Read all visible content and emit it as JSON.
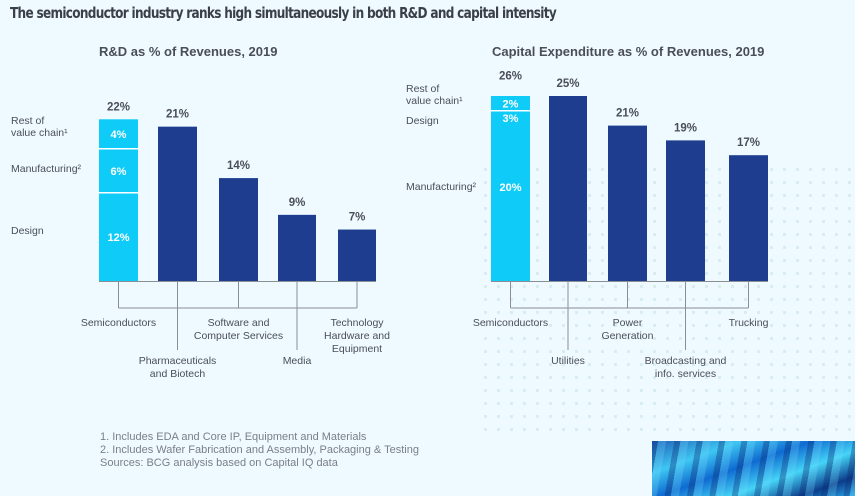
{
  "title": "The semiconductor industry ranks high simultaneously in both R&D and capital intensity",
  "colors": {
    "semiconductor": "#0fcbf8",
    "other": "#1f3d8f",
    "axis": "#8a8f96",
    "value_text": "#4a4f55",
    "segment_text": "#ffffff"
  },
  "footnotes": [
    "1. Includes EDA and Core IP, Equipment and Materials",
    "2. Includes Wafer Fabrication and Assembly, Packaging & Testing",
    "Sources: BCG analysis based on Capital IQ data"
  ],
  "chart_data": [
    {
      "type": "bar",
      "title": "R&D as % of Revenues, 2019",
      "xlabel": "",
      "ylabel": "",
      "ylim": [
        0,
        22
      ],
      "grid": false,
      "categories": [
        "Semiconductors",
        "Pharmaceuticals and Biotech",
        "Software and Computer Services",
        "Media",
        "Technology Hardware and Equipment"
      ],
      "category_lines": [
        [
          "Semiconductors"
        ],
        [
          "Pharmaceuticals",
          "and Biotech"
        ],
        [
          "Software and",
          "Computer Services"
        ],
        [
          "Media"
        ],
        [
          "Technology",
          "Hardware and",
          "Equipment"
        ]
      ],
      "category_row": [
        "upper",
        "lower",
        "upper",
        "lower",
        "upper"
      ],
      "values": [
        22,
        21,
        14,
        9,
        7
      ],
      "value_labels": [
        "22%",
        "21%",
        "14%",
        "9%",
        "7%"
      ],
      "stacked_first_bar": {
        "segments": [
          {
            "name": "Design",
            "value": 12,
            "label": "12%",
            "legend": [
              "Design"
            ]
          },
          {
            "name": "Manufacturing",
            "value": 6,
            "label": "6%",
            "legend": [
              "Manufacturing²"
            ]
          },
          {
            "name": "Rest of value chain",
            "value": 4,
            "label": "4%",
            "legend": [
              "Rest of",
              "value chain¹"
            ]
          }
        ]
      }
    },
    {
      "type": "bar",
      "title": "Capital Expenditure as % of Revenues, 2019",
      "xlabel": "",
      "ylabel": "",
      "ylim": [
        0,
        26
      ],
      "grid": false,
      "categories": [
        "Semiconductors",
        "Utilities",
        "Power Generation",
        "Broadcasting and info. services",
        "Trucking"
      ],
      "category_lines": [
        [
          "Semiconductors"
        ],
        [
          "Utilities"
        ],
        [
          "Power",
          "Generation"
        ],
        [
          "Broadcasting and",
          "info. services"
        ],
        [
          "Trucking"
        ]
      ],
      "category_row": [
        "upper",
        "lower",
        "upper",
        "lower",
        "upper"
      ],
      "values": [
        26,
        25,
        21,
        19,
        17
      ],
      "value_labels": [
        "26%",
        "25%",
        "21%",
        "19%",
        "17%"
      ],
      "stacked_first_bar": {
        "segments": [
          {
            "name": "Manufacturing",
            "value": 20,
            "label": "20%",
            "legend": [
              "Manufacturing²"
            ]
          },
          {
            "name": "Design",
            "value": 3,
            "label": "3%",
            "legend": [
              "Design"
            ]
          },
          {
            "name": "Rest of value chain",
            "value": 2,
            "label": "2%",
            "legend": [
              "Rest of",
              "value chain¹"
            ]
          }
        ]
      }
    }
  ]
}
